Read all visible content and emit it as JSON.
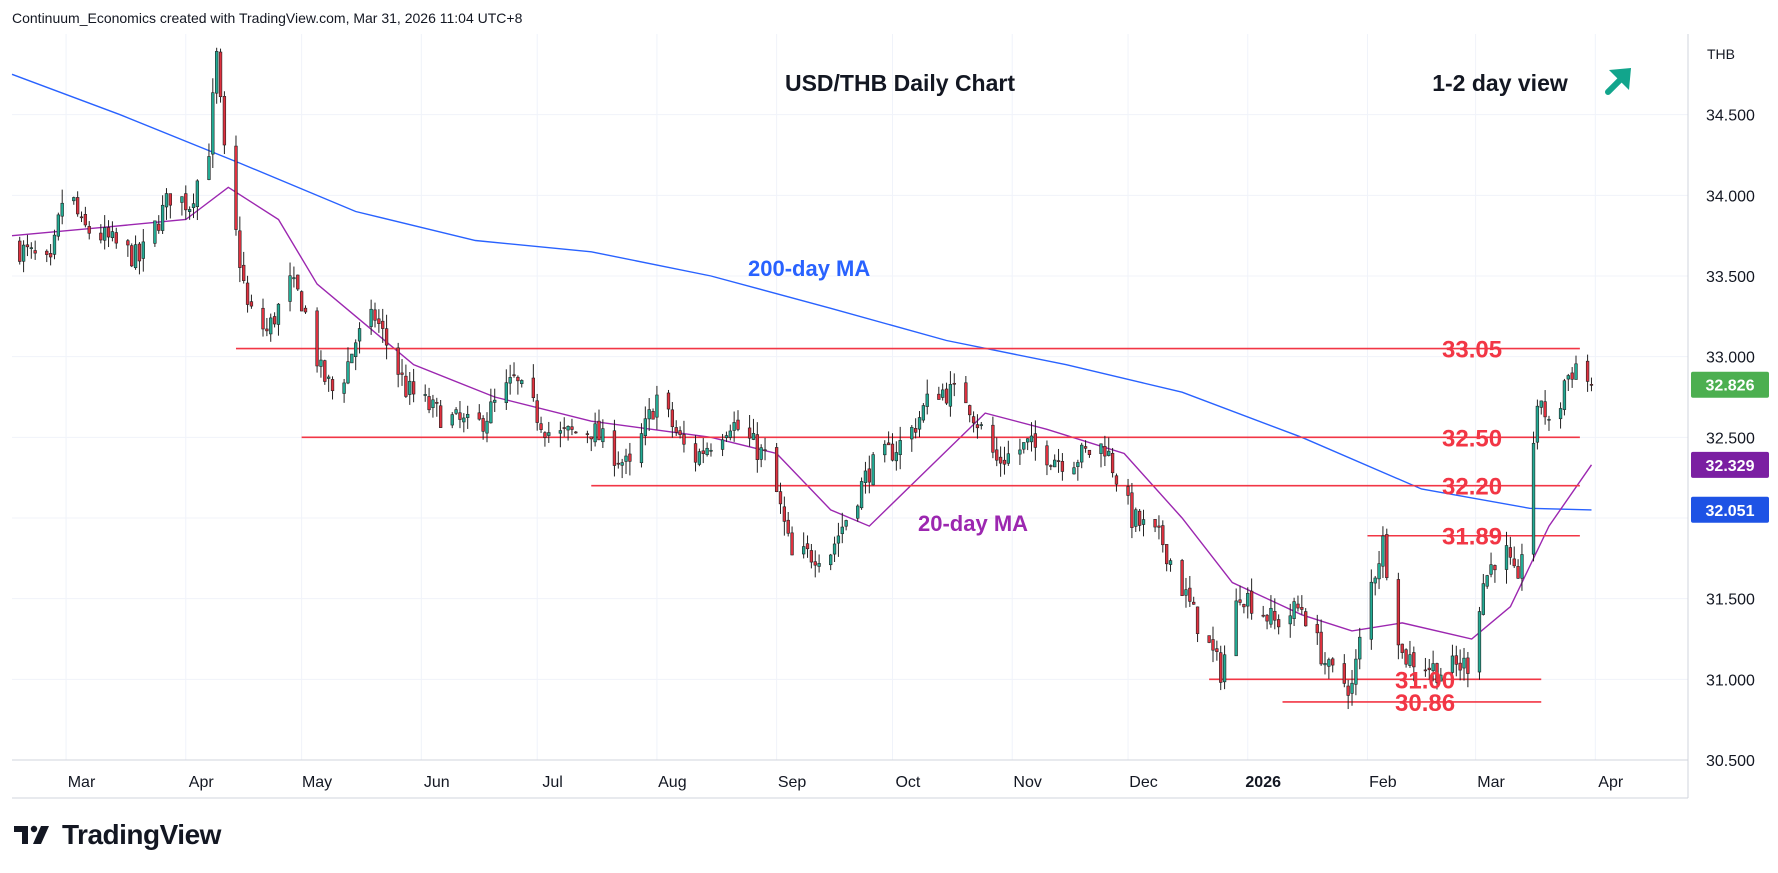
{
  "header": {
    "attribution": "Continuum_Economics created with TradingView.com, Mar 31, 2026 11:04 UTC+8"
  },
  "footer": {
    "brand": "TradingView"
  },
  "colors": {
    "up": "#22ab94",
    "down": "#e0313f",
    "ma200": "#2962ff",
    "ma20": "#9c27b0",
    "level": "#f23645",
    "price_badge": "#4caf50",
    "ma20_badge": "#7b1fa2",
    "ma200_badge": "#1e53e5",
    "arrow": "#12a58c"
  },
  "chart_data": {
    "type": "candlestick",
    "title": "USD/THB Daily Chart",
    "view_label": "1-2 day view",
    "view_direction": "up",
    "currency": "THB",
    "yaxis_ticks": [
      "34.500",
      "34.000",
      "33.500",
      "33.000",
      "32.500",
      "31.500",
      "31.000",
      "30.500"
    ],
    "ylim": [
      30.5,
      35.0
    ],
    "xaxis_ticks": [
      "Mar",
      "Apr",
      "May",
      "Jun",
      "Jul",
      "Aug",
      "Sep",
      "Oct",
      "Nov",
      "Dec",
      "2026",
      "Feb",
      "Mar",
      "Apr"
    ],
    "last_price": "32.826",
    "ma20_value": "32.329",
    "ma200_value": "32.051",
    "ma_labels": {
      "ma200": "200-day MA",
      "ma20": "20-day MA"
    },
    "levels": [
      {
        "label": "33.05",
        "value": 33.05,
        "from": "2025-04-14",
        "to": "2026-03-28"
      },
      {
        "label": "32.50",
        "value": 32.5,
        "from": "2025-05-01",
        "to": "2026-03-28"
      },
      {
        "label": "32.20",
        "value": 32.2,
        "from": "2025-07-15",
        "to": "2026-03-28"
      },
      {
        "label": "31.89",
        "value": 31.89,
        "from": "2026-02-01",
        "to": "2026-03-28"
      },
      {
        "label": "31.00",
        "value": 31.0,
        "from": "2025-12-22",
        "to": "2026-03-18"
      },
      {
        "label": "30.86",
        "value": 30.86,
        "from": "2026-01-10",
        "to": "2026-03-18"
      }
    ],
    "x_range": [
      "2025-02-15",
      "2026-04-25"
    ],
    "price_path": [
      [
        "2025-02-15",
        33.7
      ],
      [
        "2025-02-25",
        33.55
      ],
      [
        "2025-03-01",
        34.1
      ],
      [
        "2025-03-05",
        33.8
      ],
      [
        "2025-03-10",
        33.75
      ],
      [
        "2025-03-20",
        33.6
      ],
      [
        "2025-03-28",
        34.0
      ],
      [
        "2025-04-02",
        33.95
      ],
      [
        "2025-04-07",
        34.3
      ],
      [
        "2025-04-09",
        34.85
      ],
      [
        "2025-04-11",
        34.25
      ],
      [
        "2025-04-14",
        33.75
      ],
      [
        "2025-04-17",
        33.3
      ],
      [
        "2025-04-22",
        33.15
      ],
      [
        "2025-04-28",
        33.45
      ],
      [
        "2025-05-01",
        33.35
      ],
      [
        "2025-05-06",
        32.9
      ],
      [
        "2025-05-10",
        32.75
      ],
      [
        "2025-05-15",
        33.1
      ],
      [
        "2025-05-20",
        33.25
      ],
      [
        "2025-05-28",
        32.8
      ],
      [
        "2025-06-05",
        32.65
      ],
      [
        "2025-06-15",
        32.55
      ],
      [
        "2025-06-25",
        32.85
      ],
      [
        "2025-07-05",
        32.5
      ],
      [
        "2025-07-15",
        32.55
      ],
      [
        "2025-07-25",
        32.3
      ],
      [
        "2025-08-01",
        32.75
      ],
      [
        "2025-08-10",
        32.35
      ],
      [
        "2025-08-20",
        32.6
      ],
      [
        "2025-08-30",
        32.35
      ],
      [
        "2025-09-05",
        31.75
      ],
      [
        "2025-09-15",
        31.8
      ],
      [
        "2025-09-25",
        32.3
      ],
      [
        "2025-10-05",
        32.5
      ],
      [
        "2025-10-12",
        32.8
      ],
      [
        "2025-10-20",
        32.75
      ],
      [
        "2025-10-28",
        32.35
      ],
      [
        "2025-11-05",
        32.45
      ],
      [
        "2025-11-15",
        32.35
      ],
      [
        "2025-11-25",
        32.45
      ],
      [
        "2025-12-02",
        32.0
      ],
      [
        "2025-12-10",
        31.85
      ],
      [
        "2025-12-18",
        31.4
      ],
      [
        "2025-12-25",
        31.05
      ],
      [
        "2025-12-30",
        31.55
      ],
      [
        "2026-01-08",
        31.35
      ],
      [
        "2026-01-15",
        31.45
      ],
      [
        "2026-01-22",
        31.05
      ],
      [
        "2026-01-28",
        30.95
      ],
      [
        "2026-02-01",
        31.5
      ],
      [
        "2026-02-05",
        31.85
      ],
      [
        "2026-02-10",
        31.15
      ],
      [
        "2026-02-20",
        31.05
      ],
      [
        "2026-02-27",
        31.1
      ],
      [
        "2026-03-03",
        31.6
      ],
      [
        "2026-03-08",
        31.85
      ],
      [
        "2026-03-12",
        31.55
      ],
      [
        "2026-03-15",
        32.35
      ],
      [
        "2026-03-18",
        32.75
      ],
      [
        "2026-03-21",
        32.45
      ],
      [
        "2026-03-24",
        32.85
      ],
      [
        "2026-03-27",
        32.95
      ],
      [
        "2026-03-31",
        32.826
      ]
    ],
    "ma20_path": [
      [
        "2025-02-15",
        33.75
      ],
      [
        "2025-03-10",
        33.8
      ],
      [
        "2025-04-01",
        33.85
      ],
      [
        "2025-04-12",
        34.05
      ],
      [
        "2025-04-25",
        33.85
      ],
      [
        "2025-05-05",
        33.45
      ],
      [
        "2025-05-15",
        33.25
      ],
      [
        "2025-05-30",
        32.95
      ],
      [
        "2025-06-20",
        32.75
      ],
      [
        "2025-07-15",
        32.6
      ],
      [
        "2025-08-15",
        32.5
      ],
      [
        "2025-09-01",
        32.4
      ],
      [
        "2025-09-15",
        32.05
      ],
      [
        "2025-09-25",
        31.95
      ],
      [
        "2025-10-10",
        32.3
      ],
      [
        "2025-10-25",
        32.65
      ],
      [
        "2025-11-10",
        32.55
      ],
      [
        "2025-11-30",
        32.4
      ],
      [
        "2025-12-15",
        32.0
      ],
      [
        "2025-12-28",
        31.6
      ],
      [
        "2026-01-15",
        31.4
      ],
      [
        "2026-01-28",
        31.3
      ],
      [
        "2026-02-10",
        31.35
      ],
      [
        "2026-02-28",
        31.25
      ],
      [
        "2026-03-10",
        31.45
      ],
      [
        "2026-03-20",
        31.95
      ],
      [
        "2026-03-31",
        32.33
      ]
    ],
    "ma200_path": [
      [
        "2025-02-15",
        34.75
      ],
      [
        "2025-03-15",
        34.5
      ],
      [
        "2025-04-15",
        34.2
      ],
      [
        "2025-05-15",
        33.9
      ],
      [
        "2025-06-15",
        33.72
      ],
      [
        "2025-07-15",
        33.65
      ],
      [
        "2025-08-15",
        33.5
      ],
      [
        "2025-09-15",
        33.3
      ],
      [
        "2025-10-15",
        33.1
      ],
      [
        "2025-11-15",
        32.95
      ],
      [
        "2025-12-15",
        32.78
      ],
      [
        "2026-01-15",
        32.5
      ],
      [
        "2026-02-15",
        32.18
      ],
      [
        "2026-03-15",
        32.06
      ],
      [
        "2026-03-31",
        32.05
      ]
    ]
  }
}
